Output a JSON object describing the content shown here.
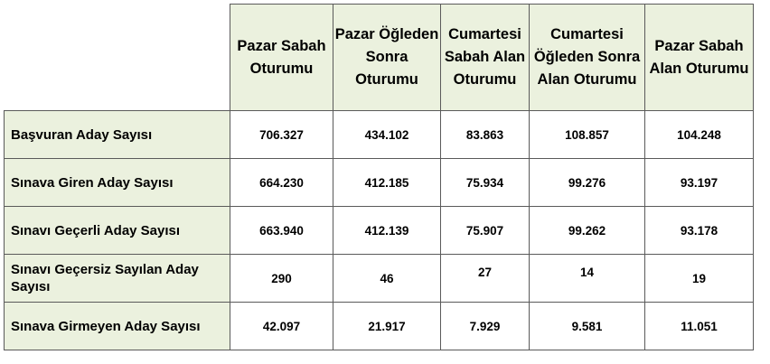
{
  "table": {
    "columns": [
      "Pazar Sabah Oturumu",
      "Pazar Öğleden Sonra Oturumu",
      "Cumartesi Sabah Alan Oturumu",
      "Cumartesi Öğleden Sonra Alan Oturumu",
      "Pazar Sabah Alan Oturumu"
    ],
    "rows": [
      {
        "label": "Başvuran Aday Sayısı",
        "values": [
          "706.327",
          "434.102",
          "83.863",
          "108.857",
          "104.248"
        ]
      },
      {
        "label": "Sınava Giren Aday Sayısı",
        "values": [
          "664.230",
          "412.185",
          "75.934",
          "99.276",
          "93.197"
        ]
      },
      {
        "label": "Sınavı Geçerli Aday Sayısı",
        "values": [
          "663.940",
          "412.139",
          "75.907",
          "99.262",
          "93.178"
        ]
      },
      {
        "label": "Sınavı Geçersiz Sayılan Aday Sayısı",
        "values": [
          "290",
          "46",
          "27",
          "14",
          "19"
        ]
      },
      {
        "label": "Sınava Girmeyen Aday Sayısı",
        "values": [
          "42.097",
          "21.917",
          "7.929",
          "9.581",
          "11.051"
        ]
      }
    ]
  }
}
